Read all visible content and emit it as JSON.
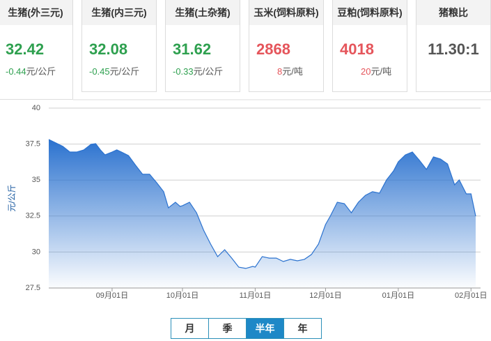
{
  "cards": [
    {
      "title": "生猪(外三元)",
      "price": 32.42,
      "change": -0.44,
      "unit": "元/公斤",
      "color": "#2ea04f"
    },
    {
      "title": "生猪(内三元)",
      "price": 32.08,
      "change": -0.45,
      "unit": "元/公斤",
      "color": "#2ea04f"
    },
    {
      "title": "生猪(土杂猪)",
      "price": 31.62,
      "change": -0.33,
      "unit": "元/公斤",
      "color": "#2ea04f"
    },
    {
      "title": "玉米(饲料原料)",
      "price": 2868,
      "change": 8,
      "unit": "元/吨",
      "color": "#e5555b"
    },
    {
      "title": "豆粕(饲料原料)",
      "price": 4018,
      "change": 20,
      "unit": "元/吨",
      "color": "#e5555b"
    },
    {
      "title": "猪粮比",
      "price": "11.30:1",
      "color": "#555555"
    }
  ],
  "chart_data": {
    "type": "area",
    "ylabel": "元/公斤",
    "color": "#2b72cf",
    "x": [
      "08月05日",
      "08月08日",
      "08月11日",
      "08月14日",
      "08月17日",
      "08月20日",
      "08月23日",
      "08月25日",
      "08月27日",
      "08月29日",
      "09月01日",
      "09月03日",
      "09月05日",
      "09月08日",
      "09月11日",
      "09月14日",
      "09月17日",
      "09月20日",
      "09月23日",
      "09月25日",
      "09月28日",
      "09月30日",
      "10月01日",
      "10月04日",
      "10月07日",
      "10月10日",
      "10月13日",
      "10月16日",
      "10月19日",
      "10月22日",
      "10月25日",
      "10月28日",
      "10月31日",
      "11月01日",
      "11月04日",
      "11月07日",
      "11月10日",
      "11月13日",
      "11月16日",
      "11月19日",
      "11月22日",
      "11月25日",
      "11月28日",
      "12月01日",
      "12月03日",
      "12月06日",
      "12月09日",
      "12月12日",
      "12月15日",
      "12月18日",
      "12月21日",
      "12月24日",
      "12月27日",
      "12月30日",
      "01月01日",
      "01月04日",
      "01月07日",
      "01月10日",
      "01月13日",
      "01月16日",
      "01月19日",
      "01月22日",
      "01月25日",
      "01月27日",
      "01月30日",
      "02月01日",
      "02月03日"
    ],
    "values": [
      37.82,
      37.58,
      37.34,
      36.95,
      36.95,
      37.1,
      37.48,
      37.53,
      37.1,
      36.75,
      36.95,
      37.1,
      36.95,
      36.7,
      36.03,
      35.4,
      35.4,
      34.82,
      34.19,
      33.07,
      33.46,
      33.17,
      33.22,
      33.46,
      32.73,
      31.52,
      30.55,
      29.68,
      30.16,
      29.58,
      28.95,
      28.86,
      29.0,
      28.95,
      29.68,
      29.58,
      29.58,
      29.34,
      29.49,
      29.39,
      29.49,
      29.83,
      30.55,
      31.91,
      32.49,
      33.46,
      33.36,
      32.73,
      33.46,
      33.94,
      34.19,
      34.09,
      35.01,
      35.64,
      36.27,
      36.75,
      36.95,
      36.37,
      35.74,
      36.61,
      36.46,
      36.12,
      34.67,
      35.01,
      34.04,
      34.04,
      32.49
    ],
    "ylim": [
      27.5,
      40
    ],
    "yticks": [
      27.5,
      30,
      32.5,
      35,
      37.5,
      40
    ],
    "xticks": [
      "09月01日",
      "10月01日",
      "11月01日",
      "12月01日",
      "01月01日",
      "02月01日"
    ],
    "grid": true
  },
  "buttons": {
    "labels": [
      "月",
      "季",
      "半年",
      "年"
    ],
    "active": 2
  }
}
